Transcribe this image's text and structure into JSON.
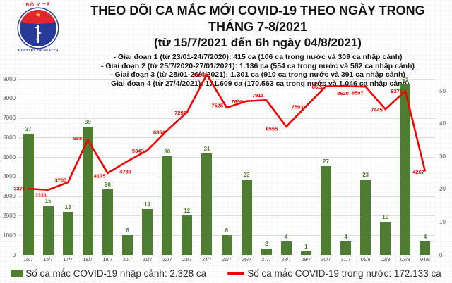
{
  "header": {
    "title_line1": "THEO DÕI CA MẮC MỚI COVID-19 THEO NGÀY TRONG THÁNG 7-8/2021",
    "title_line2": "(từ 15/7/2021 đến 6h ngày 04/8/2021)",
    "bullets": [
      "- Giai đoạn 1 (từ 23/01-24/7/2020): 415 ca (106 ca trong nước và 309 ca nhập cảnh)",
      "- Giai đoạn 2 (từ 25/7/2020-27/01/2021): 1.136 ca (554 ca trong nước và 582 ca nhập cảnh)",
      "- Giai đoạn 3 (từ 28/01-26/4/2021): 1.301 ca (910 ca trong nước và 391 ca nhập cảnh)",
      "- Giai đoạn 4 (từ 27/4/2021): 171.609 ca (170.563 ca trong nước và 1.046 ca nhập cảnh)"
    ]
  },
  "logo": {
    "top_text": "BỘ Y TẾ",
    "star": "★",
    "bottom_text": "MINISTRY OF HEALTH"
  },
  "colors": {
    "bar_green": "#4e7d31",
    "line_red": "#f40000",
    "grid": "#dcdcdc",
    "axis_text": "#595959"
  },
  "chart_data": {
    "type": "combo-bar-line",
    "title": "THEO DÕI CA MẮC MỚI COVID-19 THEO NGÀY TRONG THÁNG 7-8/2021 (từ 15/7/2021 đến 6h ngày 04/8/2021)",
    "categories": [
      "15/7",
      "16/7",
      "17/7",
      "18/7",
      "19/7",
      "20/7",
      "21/7",
      "22/7",
      "23/7",
      "24/7",
      "25/7",
      "26/7",
      "27/7",
      "28/7",
      "29/7",
      "30/7",
      "31/7",
      "01/8",
      "02/8",
      "03/8",
      "04/8"
    ],
    "series": [
      {
        "name": "Số ca mắc COVID-19 nhập cảnh: 2.328 ca",
        "type": "bar",
        "axis": "right",
        "color": "#4e7d31",
        "values": [
          37,
          15,
          13,
          39,
          20,
          6,
          14,
          30,
          12,
          31,
          6,
          23,
          2,
          4,
          1,
          27,
          4,
          23,
          10,
          52,
          4
        ]
      },
      {
        "name": "Số ca mắc COVID-19 trong nước: 172.133 ca",
        "type": "line",
        "axis": "left",
        "color": "#f40000",
        "values": [
          3379,
          3321,
          3705,
          5887,
          4175,
          4789,
          5343,
          6364,
          7295,
          9225,
          7525,
          7859,
          7911,
          6555,
          7593,
          8622,
          8620,
          8597,
          7445,
          8377,
          4267
        ]
      }
    ],
    "left_axis": {
      "min": 0,
      "max": 9000,
      "step": 1000
    },
    "right_axis": {
      "min": 0,
      "max": 50,
      "step": 10
    },
    "grid": true,
    "legend_position": "bottom",
    "data_labels": true
  }
}
